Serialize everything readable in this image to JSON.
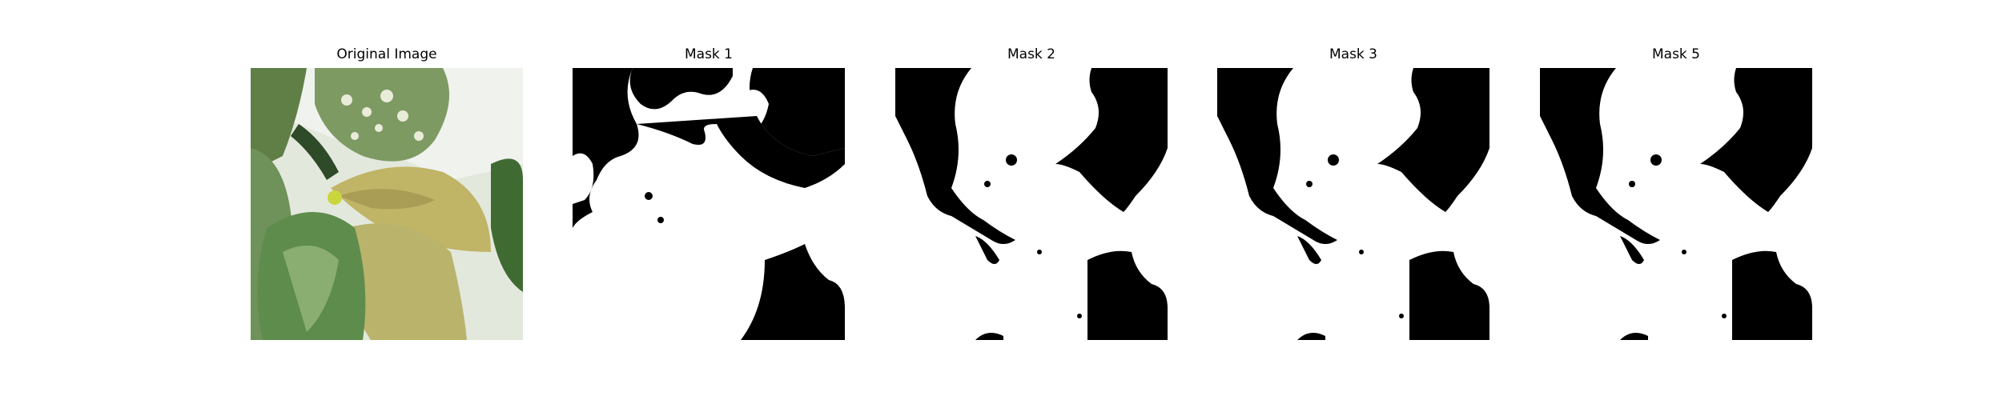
{
  "figure": {
    "panels": [
      {
        "title": "Original Image",
        "kind": "photo"
      },
      {
        "title": "Mask 1",
        "kind": "mask"
      },
      {
        "title": "Mask 2",
        "kind": "mask"
      },
      {
        "title": "Mask 3",
        "kind": "mask"
      },
      {
        "title": "Mask 5",
        "kind": "mask"
      }
    ]
  },
  "colors": {
    "mask_foreground": "#ffffff",
    "mask_background": "#000000",
    "leaf_dark_green": "#4f7a3a",
    "leaf_yellow": "#c2b56a",
    "leaf_light": "#d9e2c9",
    "background_grey": "#e6ebe3"
  }
}
